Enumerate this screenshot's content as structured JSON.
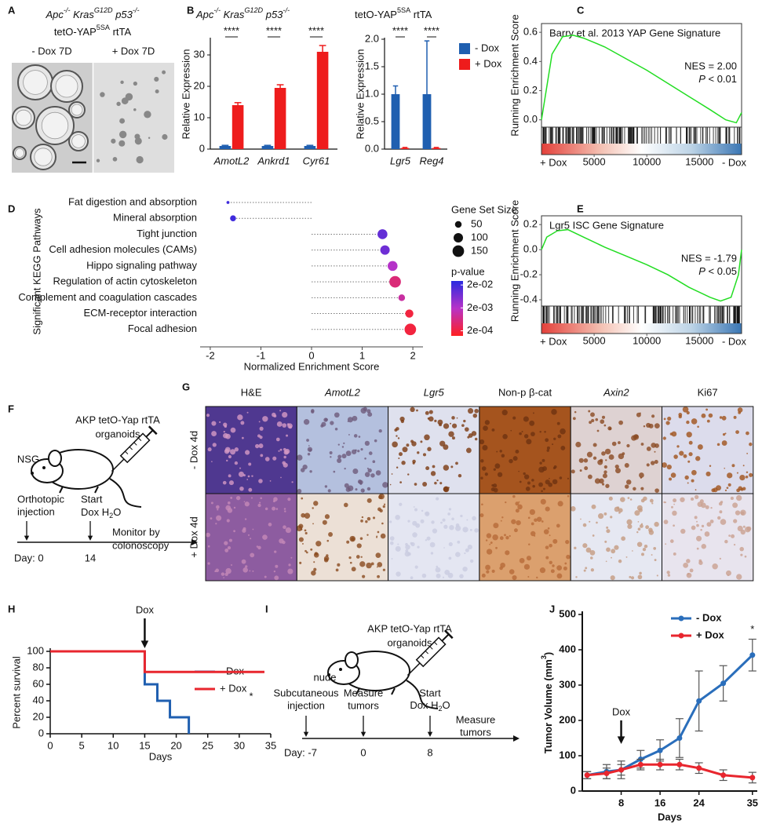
{
  "panel_labels": [
    "A",
    "B",
    "C",
    "D",
    "E",
    "F",
    "G",
    "H",
    "I",
    "J"
  ],
  "panel_a": {
    "genotype": [
      "Apc",
      "-/-",
      " Kras",
      "G12D",
      " p53",
      "-/-"
    ],
    "construct": [
      "tetO-YAP",
      "5SA",
      " rtTA"
    ],
    "conditions": [
      "- Dox 7D",
      "+ Dox 7D"
    ]
  },
  "panel_b": {
    "genotype": [
      "Apc",
      "-/-",
      " Kras",
      "G12D",
      " p53",
      "-/-"
    ],
    "construct": [
      "tetO-YAP",
      "5SA",
      " rtTA"
    ]
  },
  "panel_f": {
    "cells": [
      "AKP tetO-Yap rtTA",
      "organoids"
    ],
    "host": "NSG",
    "injection": [
      "Orthotopic",
      "injection"
    ],
    "start": "Start",
    "dox_h2o": [
      "Dox H",
      "2",
      "O"
    ],
    "monitor": [
      "Monitor by",
      "colonoscopy"
    ],
    "days": [
      "Day: 0",
      "14"
    ]
  },
  "panel_g": {
    "columns": [
      "H&E",
      "AmotL2",
      "Lgr5",
      "Non-p β-cat",
      "Axin2",
      "Ki67"
    ],
    "rows": [
      "- Dox 4d",
      "+ Dox 4d"
    ]
  },
  "panel_i": {
    "cells": [
      "AKP tetO-Yap rtTA",
      "organoids"
    ],
    "host": "nude",
    "injection": [
      "Subcutaneous",
      "injection"
    ],
    "measure": [
      "Measure",
      "tumors"
    ],
    "start": "Start",
    "dox_h2o": [
      "Dox H",
      "2",
      "O"
    ],
    "measure_end": [
      "Measure",
      "tumors"
    ],
    "days": [
      "Day: -7",
      "0",
      "8"
    ]
  },
  "chart_data": [
    {
      "type": "bar",
      "ylabel": "Relative Expression",
      "categories": [
        "AmotL2",
        "Ankrd1",
        "Cyr61"
      ],
      "series": [
        {
          "color": "#1f5fb0",
          "values": [
            1,
            1,
            1
          ],
          "errors": [
            0.2,
            0.2,
            0.2
          ]
        },
        {
          "color": "#ee1c1c",
          "values": [
            14,
            19.5,
            31
          ],
          "errors": [
            0.8,
            1,
            2
          ]
        }
      ],
      "significance": [
        "****",
        "****",
        "****"
      ],
      "ylim": [
        0,
        35
      ],
      "yticks": [
        0,
        10,
        20,
        30
      ]
    },
    {
      "type": "bar",
      "ylabel": "Relative Expression",
      "categories": [
        "Lgr5",
        "Reg4"
      ],
      "series": [
        {
          "name": "- Dox",
          "color": "#1f5fb0",
          "values": [
            1,
            1
          ],
          "errors": [
            0.15,
            0.97
          ]
        },
        {
          "name": "+ Dox",
          "color": "#ee1c1c",
          "values": [
            0.02,
            0.02
          ],
          "errors": [
            0.01,
            0.01
          ]
        }
      ],
      "significance": [
        "****",
        "****"
      ],
      "ylim": [
        0,
        2
      ],
      "yticks": [
        {
          "value": 0,
          "label": "0.0"
        },
        {
          "value": 0.5,
          "label": "0.5"
        },
        {
          "value": 1,
          "label": "1.0"
        },
        {
          "value": 1.5,
          "label": "1.5"
        },
        {
          "value": 2,
          "label": "2.0"
        }
      ],
      "legend": "right"
    },
    {
      "type": "gsea",
      "title": "Barry et al. 2013 YAP Gene Signature",
      "ylabel": "Running Enrichment Score",
      "nes": "NES = 2.00",
      "stat": [
        "P",
        " < 0.01"
      ],
      "color": "#22dd22",
      "x": [
        0,
        1000,
        2000,
        3000,
        4000,
        6000,
        8000,
        10000,
        12000,
        14000,
        16000,
        17500,
        18500,
        19000
      ],
      "values": [
        0,
        0.45,
        0.57,
        0.58,
        0.56,
        0.5,
        0.42,
        0.34,
        0.25,
        0.16,
        0.07,
        0,
        -0.02,
        0.05
      ],
      "xlim": [
        0,
        19000
      ],
      "xticks": [
        5000,
        10000,
        15000
      ],
      "ylim": [
        -0.05,
        0.66
      ],
      "yticks": [
        {
          "value": 0,
          "label": "0.0"
        },
        {
          "value": 0.2,
          "label": "0.2"
        },
        {
          "value": 0.4,
          "label": "0.4"
        },
        {
          "value": 0.6,
          "label": "0.6"
        }
      ],
      "ends": [
        "+ Dox",
        "- Dox"
      ]
    },
    {
      "type": "dot",
      "ylabel": "Significant KEGG Pathways",
      "xlabel": "Normalized Enrichment Score",
      "categories": [
        "Fat digestion and absorption",
        "Mineral absorption",
        "Tight junction",
        "Cell adhesion molecules (CAMs)",
        "Hippo signaling pathway",
        "Regulation of actin cytoskeleton",
        "Complement and coagulation cascades",
        "ECM-receptor interaction",
        "Focal adhesion"
      ],
      "values": [
        -1.65,
        -1.55,
        1.4,
        1.45,
        1.6,
        1.65,
        1.78,
        1.93,
        1.95
      ],
      "sizes": [
        10,
        40,
        110,
        100,
        110,
        150,
        50,
        75,
        150
      ],
      "pvalues": [
        0.02,
        0.02,
        0.01,
        0.008,
        0.002,
        0.0005,
        0.001,
        0.0002,
        0.0002
      ],
      "xlim": [
        -2.2,
        2.2
      ],
      "xticks": [
        -2,
        -1,
        0,
        1,
        2
      ],
      "size_title": "Gene Set Size",
      "size_legend": [
        50,
        100,
        150
      ],
      "color_title": "p-value",
      "colorlim": [
        0.03,
        0.00012
      ],
      "color_ticks": [
        {
          "value": 0.02,
          "label": "2e-02"
        },
        {
          "value": 0.002,
          "label": "2e-03"
        },
        {
          "value": 0.0002,
          "label": "2e-04"
        }
      ]
    },
    {
      "type": "gsea",
      "title": "Lgr5 ISC Gene Signature",
      "ylabel": "Running Enrichment Score",
      "nes": "NES = -1.79",
      "stat": [
        "P",
        " < 0.05"
      ],
      "color": "#22dd22",
      "x": [
        0,
        500,
        1500,
        2500,
        4000,
        6000,
        8000,
        10000,
        12000,
        14000,
        16000,
        17000,
        18000,
        18700,
        19000
      ],
      "values": [
        0,
        0.1,
        0.15,
        0.16,
        0.1,
        0.02,
        -0.05,
        -0.12,
        -0.2,
        -0.3,
        -0.38,
        -0.41,
        -0.38,
        -0.2,
        0
      ],
      "xlim": [
        0,
        19000
      ],
      "xticks": [
        5000,
        10000,
        15000
      ],
      "ylim": [
        -0.45,
        0.27
      ],
      "yticks": [
        {
          "value": -0.4,
          "label": "-0.4"
        },
        {
          "value": -0.2,
          "label": "-0.2"
        },
        {
          "value": 0,
          "label": "0.0"
        },
        {
          "value": 0.2,
          "label": "0.2"
        }
      ],
      "ends": [
        "+ Dox",
        "- Dox"
      ]
    },
    {
      "type": "line",
      "ylabel": "Percent survival",
      "xlabel": "Days",
      "series": [
        {
          "name": "- Dox",
          "color": "#1f5fb0",
          "x": [
            0,
            15,
            15,
            17,
            17,
            19,
            19,
            22,
            22
          ],
          "values": [
            100,
            100,
            60,
            60,
            40,
            40,
            20,
            20,
            0
          ]
        },
        {
          "name": "+ Dox",
          "color": "#e8262e",
          "x": [
            0,
            15,
            15,
            34
          ],
          "values": [
            100,
            100,
            75,
            75
          ]
        }
      ],
      "xlim": [
        0,
        35
      ],
      "xticks": [
        0,
        5,
        10,
        15,
        20,
        25,
        30,
        35
      ],
      "ylim": [
        0,
        100
      ],
      "yticks": [
        0,
        20,
        40,
        60,
        80,
        100
      ],
      "annotation": {
        "text": "Dox",
        "x": 15
      },
      "star": "*"
    },
    {
      "type": "line",
      "ylabel": [
        "Tumor Volume (mm",
        "3",
        ")"
      ],
      "xlabel": "Days",
      "markers": true,
      "series": [
        {
          "name": "- Dox",
          "color": "#2a6ebb",
          "x": [
            1,
            5,
            8,
            12,
            16,
            20,
            24,
            29,
            35
          ],
          "values": [
            45,
            55,
            60,
            90,
            115,
            150,
            255,
            305,
            385
          ],
          "errors": [
            10,
            20,
            25,
            25,
            30,
            55,
            85,
            50,
            45
          ]
        },
        {
          "name": "+ Dox",
          "color": "#e8262e",
          "x": [
            1,
            5,
            8,
            12,
            16,
            20,
            24,
            29,
            35
          ],
          "values": [
            45,
            50,
            60,
            75,
            75,
            75,
            65,
            45,
            38
          ],
          "errors": [
            10,
            15,
            15,
            15,
            15,
            15,
            15,
            15,
            15
          ]
        }
      ],
      "xlim": [
        0,
        36
      ],
      "xticks": [
        8,
        16,
        24,
        35
      ],
      "ylim": [
        0,
        500
      ],
      "yticks": [
        0,
        100,
        200,
        300,
        400,
        500
      ],
      "annotation": {
        "text": "Dox",
        "x": 8
      },
      "star": "*"
    }
  ]
}
